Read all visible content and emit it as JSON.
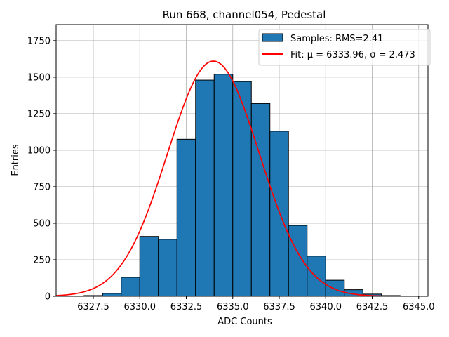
{
  "chart_data": {
    "type": "bar",
    "title": "Run 668, channel054, Pedestal",
    "xlabel": "ADC Counts",
    "ylabel": "Entries",
    "xlim": [
      6325.5,
      6345.5
    ],
    "ylim": [
      0,
      1860
    ],
    "bin_width": 1,
    "bins": [
      {
        "left": 6327,
        "value": 5
      },
      {
        "left": 6328,
        "value": 20
      },
      {
        "left": 6329,
        "value": 130
      },
      {
        "left": 6330,
        "value": 410
      },
      {
        "left": 6331,
        "value": 390
      },
      {
        "left": 6332,
        "value": 1075
      },
      {
        "left": 6333,
        "value": 1480
      },
      {
        "left": 6334,
        "value": 1520
      },
      {
        "left": 6335,
        "value": 1470
      },
      {
        "left": 6336,
        "value": 1320
      },
      {
        "left": 6337,
        "value": 1130
      },
      {
        "left": 6338,
        "value": 485
      },
      {
        "left": 6339,
        "value": 275
      },
      {
        "left": 6340,
        "value": 110
      },
      {
        "left": 6341,
        "value": 45
      },
      {
        "left": 6342,
        "value": 15
      },
      {
        "left": 6343,
        "value": 5
      }
    ],
    "x_ticks": [
      6327.5,
      6330.0,
      6332.5,
      6335.0,
      6337.5,
      6340.0,
      6342.5,
      6345.0
    ],
    "x_tick_labels": [
      "6327.5",
      "6330.0",
      "6332.5",
      "6335.0",
      "6337.5",
      "6340.0",
      "6342.5",
      "6345.0"
    ],
    "y_ticks": [
      0,
      250,
      500,
      750,
      1000,
      1250,
      1500,
      1750
    ],
    "y_tick_labels": [
      "0",
      "250",
      "500",
      "750",
      "1000",
      "1250",
      "1500",
      "1750"
    ],
    "grid": true,
    "fit": {
      "mu": 6333.96,
      "sigma": 2.473,
      "amplitude": 1610,
      "x_range": [
        6325.5,
        6343.0
      ]
    },
    "legend": {
      "position": "top-right",
      "entries": [
        {
          "label": "Samples: RMS=2.41",
          "kind": "patch",
          "color": "#1f77b4"
        },
        {
          "label": "Fit: μ = 6333.96, σ = 2.473",
          "kind": "line",
          "color": "#ff0000"
        }
      ]
    },
    "colors": {
      "bar": "#1f77b4",
      "edge": "#000000",
      "fit": "#ff0000",
      "grid": "#b0b0b0"
    }
  }
}
